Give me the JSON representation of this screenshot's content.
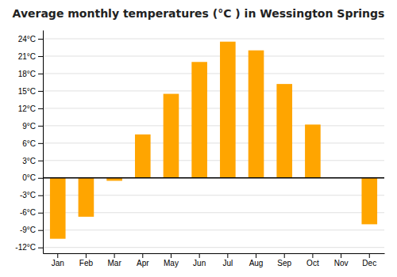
{
  "chart_data": {
    "type": "bar",
    "title": "Average monthly temperatures (°C ) in Wessington Springs",
    "categories": [
      "Jan",
      "Feb",
      "Mar",
      "Apr",
      "May",
      "Jun",
      "Jul",
      "Aug",
      "Sep",
      "Oct",
      "Nov",
      "Dec"
    ],
    "values": [
      -10.5,
      -6.7,
      -0.5,
      7.5,
      14.5,
      20.0,
      23.5,
      22.0,
      16.2,
      9.2,
      0.0,
      -8.0
    ],
    "color": "#FFA500",
    "ylim": [
      -13,
      25.5
    ],
    "yticks": [
      {
        "value": -12,
        "label": "-12°C"
      },
      {
        "value": -9,
        "label": "-9°C"
      },
      {
        "value": -6,
        "label": "-6°C"
      },
      {
        "value": -3,
        "label": "-3°C"
      },
      {
        "value": 0,
        "label": "0°C"
      },
      {
        "value": 3,
        "label": "3°C"
      },
      {
        "value": 6,
        "label": "6°C"
      },
      {
        "value": 9,
        "label": "9°C"
      },
      {
        "value": 12,
        "label": "12°C"
      },
      {
        "value": 15,
        "label": "15°C"
      },
      {
        "value": 18,
        "label": "18°C"
      },
      {
        "value": 21,
        "label": "21°C"
      },
      {
        "value": 24,
        "label": "24°C"
      }
    ],
    "grid": true
  }
}
